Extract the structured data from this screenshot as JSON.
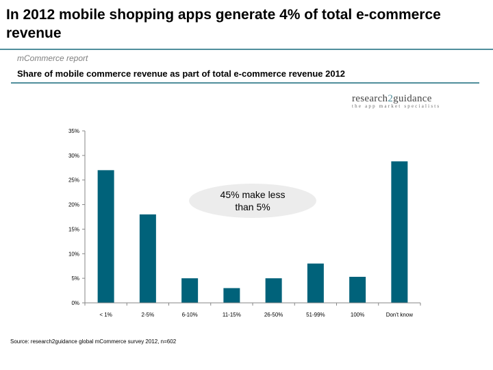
{
  "slide": {
    "title": "In 2012 mobile shopping apps generate 4% of total e-commerce revenue",
    "report_label": "mCommerce report",
    "subtitle": "Share of mobile commerce revenue as part of total e-commerce revenue 2012",
    "source": "Source: research2guidance global mCommerce survey 2012, n=602",
    "annotation": "45% make less than 5%",
    "logo": {
      "part1": "research",
      "part2": "2",
      "part3": "guidance",
      "tagline": "the app market specialists"
    }
  },
  "colors": {
    "bar": "#00627a",
    "rule": "#4f8e9b",
    "annotation_bg": "#ececec"
  },
  "chart_data": {
    "type": "bar",
    "categories": [
      "< 1%",
      "2-5%",
      "6-10%",
      "11-15%",
      "26-50%",
      "51-99%",
      "100%",
      "Don't know"
    ],
    "values": [
      27,
      18,
      5,
      3,
      5,
      8,
      5.3,
      28.8
    ],
    "ylim": [
      0,
      35
    ],
    "yticks": [
      "0%",
      "5%",
      "10%",
      "15%",
      "20%",
      "25%",
      "30%",
      "35%"
    ],
    "xlabel": "",
    "ylabel": "",
    "grid": false
  }
}
